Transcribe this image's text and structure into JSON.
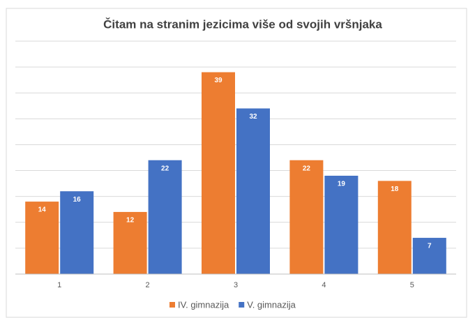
{
  "chart_data": {
    "type": "bar",
    "title": "Čitam na stranim jezicima više od svojih vršnjaka",
    "categories": [
      "1",
      "2",
      "3",
      "4",
      "5"
    ],
    "series": [
      {
        "name": "IV. gimnazija",
        "color": "#ed7d31",
        "values": [
          14,
          12,
          39,
          22,
          18
        ]
      },
      {
        "name": "V. gimnazija",
        "color": "#4472c4",
        "values": [
          16,
          22,
          32,
          19,
          7
        ]
      }
    ],
    "ylim": [
      0,
      45
    ],
    "yticks": [
      0,
      5,
      10,
      15,
      20,
      25,
      30,
      35,
      40,
      45
    ],
    "grid": true
  }
}
